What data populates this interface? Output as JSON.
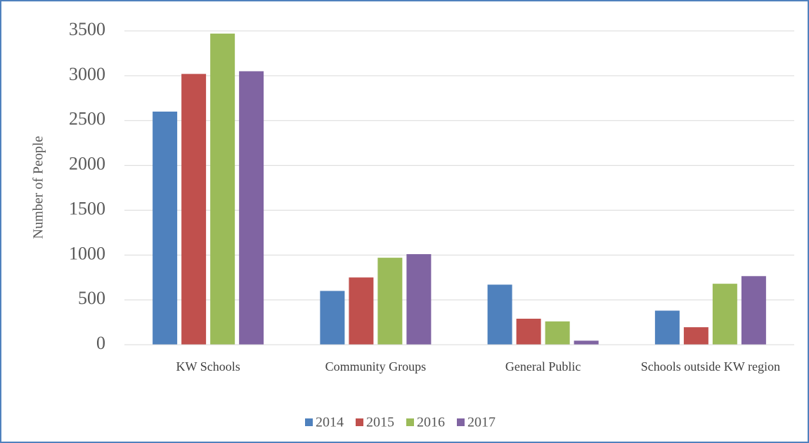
{
  "chart_data": {
    "type": "bar",
    "y_label": "Number of People",
    "categories": [
      "KW Schools",
      "Community Groups",
      "General Public",
      "Schools outside KW region"
    ],
    "series": [
      {
        "name": "2014",
        "color": "#4f81bd",
        "values": [
          2600,
          600,
          670,
          380
        ]
      },
      {
        "name": "2015",
        "color": "#c0504d",
        "values": [
          3020,
          750,
          290,
          195
        ]
      },
      {
        "name": "2016",
        "color": "#9bbb59",
        "values": [
          3470,
          970,
          260,
          680
        ]
      },
      {
        "name": "2017",
        "color": "#8064a2",
        "values": [
          3050,
          1010,
          45,
          765
        ]
      }
    ],
    "ylim": [
      0,
      3500
    ],
    "yticks": [
      0,
      500,
      1000,
      1500,
      2000,
      2500,
      3000,
      3500
    ],
    "grid": true,
    "legend": "bottom"
  }
}
